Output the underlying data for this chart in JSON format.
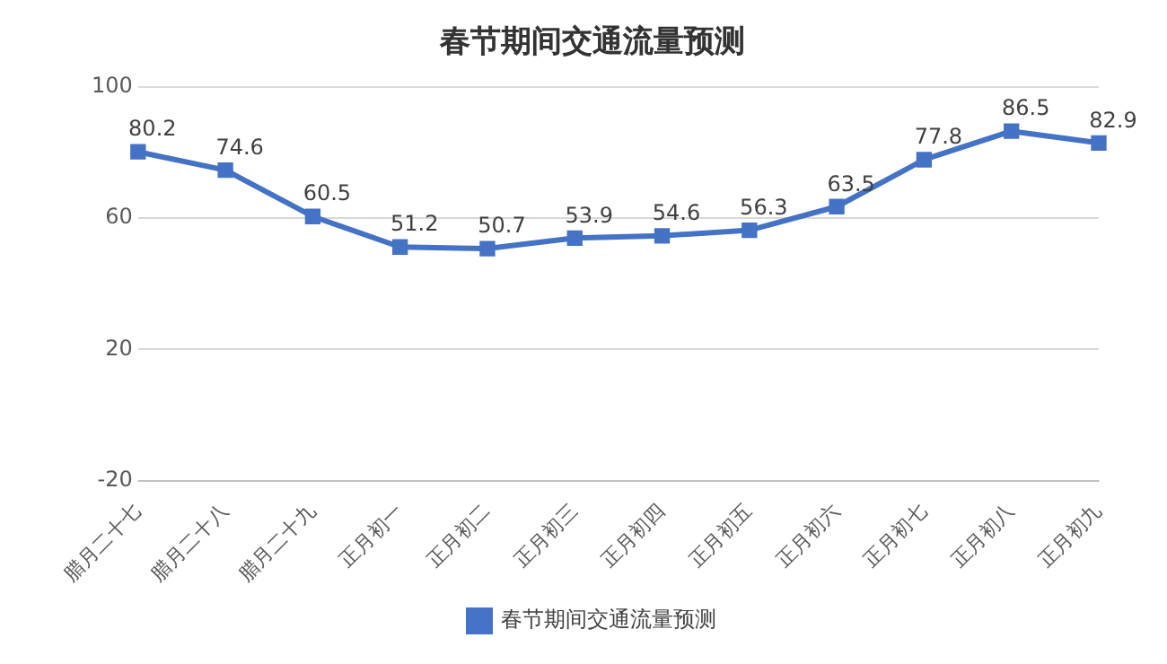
{
  "chart_data": {
    "type": "line",
    "title": "春节期间交通流量预测",
    "categories": [
      "腊月二十七",
      "腊月二十八",
      "腊月二十九",
      "正月初一",
      "正月初二",
      "正月初三",
      "正月初四",
      "正月初五",
      "正月初六",
      "正月初七",
      "正月初八",
      "正月初九"
    ],
    "series": [
      {
        "name": "春节期间交通流量预测",
        "color": "#4472c4",
        "values": [
          80.2,
          74.6,
          60.5,
          51.2,
          50.7,
          53.9,
          54.6,
          56.3,
          63.5,
          77.8,
          86.5,
          82.9
        ]
      }
    ],
    "ylim": [
      -20,
      100
    ],
    "yticks": [
      -20,
      20,
      60,
      100
    ],
    "grid": "y",
    "legend": "bottom",
    "marker": "square",
    "line_style": "solid",
    "data_labels": true
  }
}
